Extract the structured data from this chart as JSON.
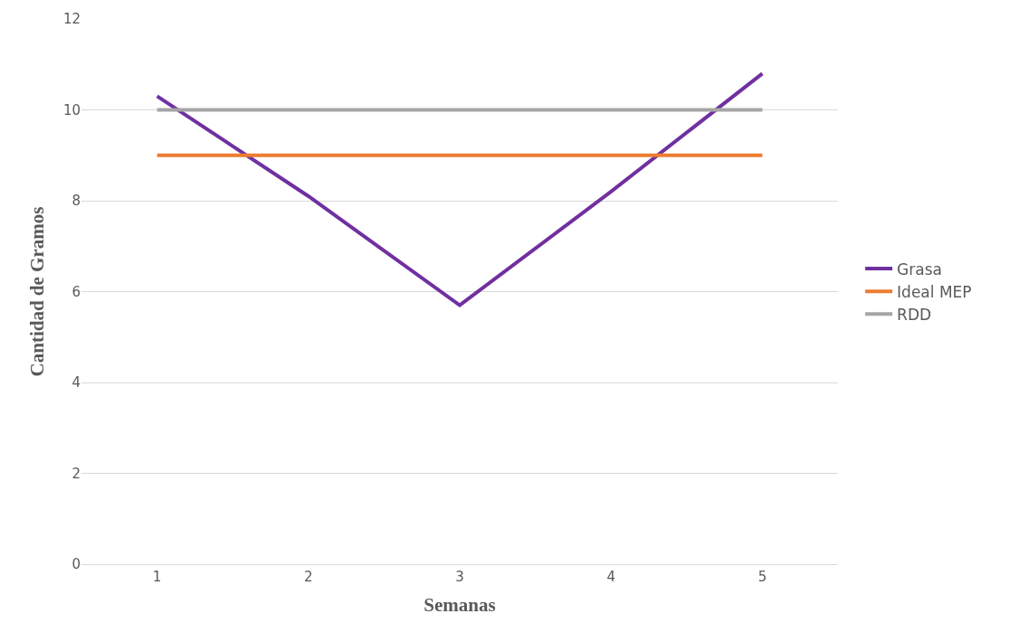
{
  "chart_data": {
    "type": "line",
    "xlabel": "Semanas",
    "ylabel": "Cantidad de Gramos",
    "categories": [
      "1",
      "2",
      "3",
      "4",
      "5"
    ],
    "series": [
      {
        "name": "Grasa",
        "color": "#7030a0",
        "values": [
          10.3,
          8.1,
          5.7,
          8.2,
          10.8
        ]
      },
      {
        "name": "Ideal MEP",
        "color": "#ed7d31",
        "values": [
          9,
          9,
          9,
          9,
          9
        ]
      },
      {
        "name": "RDD",
        "color": "#a5a5a5",
        "values": [
          10,
          10,
          10,
          10,
          10
        ]
      }
    ],
    "ylim": [
      0,
      12
    ],
    "yticks": [
      0,
      2,
      4,
      6,
      8,
      10,
      12
    ],
    "grid": "y",
    "legend": "right",
    "marker": "none",
    "line_style": "solid"
  }
}
